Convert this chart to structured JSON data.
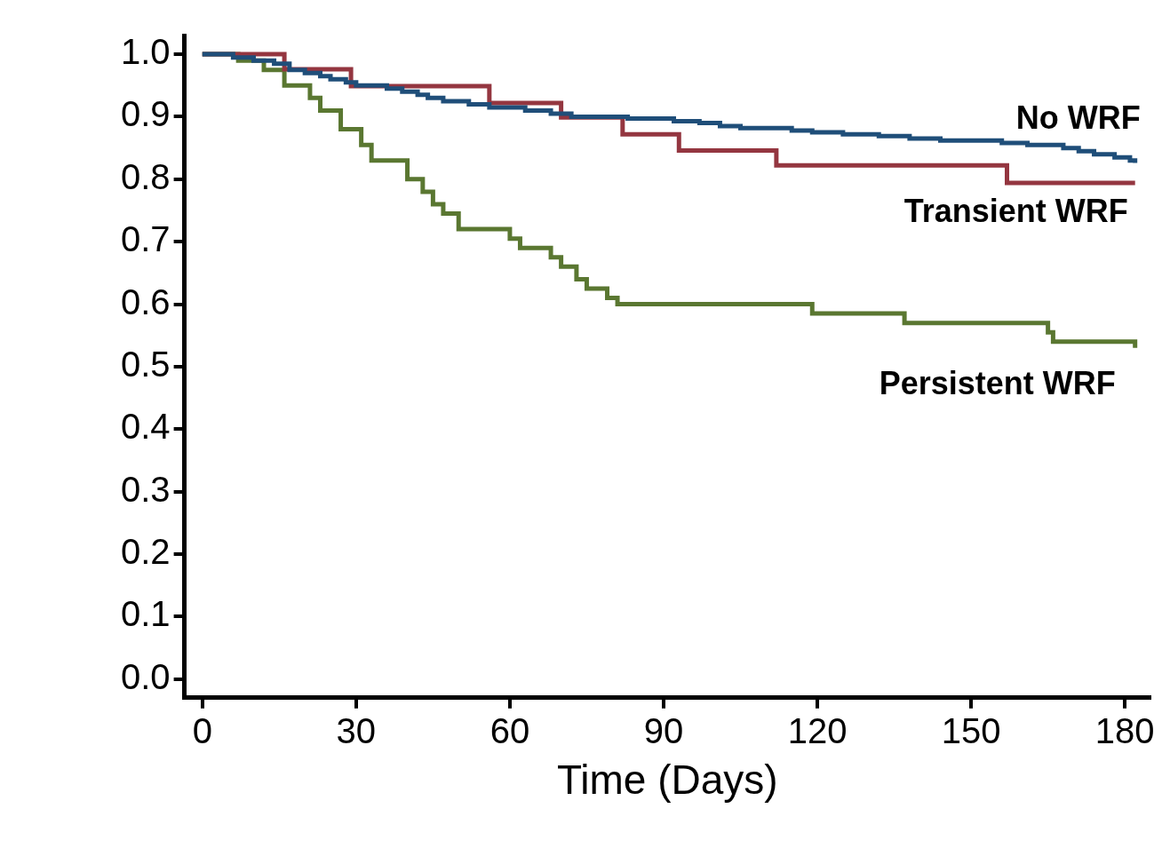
{
  "chart_data": {
    "type": "step",
    "xlabel": "Time (Days)",
    "xlim": [
      -3.5,
      185
    ],
    "xticks": [
      0,
      30,
      60,
      90,
      120,
      150,
      180
    ],
    "ylim": [
      -0.03,
      1.03
    ],
    "yticks": [
      {
        "value": 0,
        "label": "0.0"
      },
      {
        "value": 0.1,
        "label": "0.1"
      },
      {
        "value": 0.2,
        "label": "0.2"
      },
      {
        "value": 0.3,
        "label": "0.3"
      },
      {
        "value": 0.4,
        "label": "0.4"
      },
      {
        "value": 0.5,
        "label": "0.5"
      },
      {
        "value": 0.6,
        "label": "0.6"
      },
      {
        "value": 0.7,
        "label": "0.7"
      },
      {
        "value": 0.8,
        "label": "0.8"
      },
      {
        "value": 0.9,
        "label": "0.9"
      },
      {
        "value": 1,
        "label": "1.0"
      }
    ],
    "grid": false,
    "legend": false,
    "marker": "none",
    "line_style": "solid",
    "series": [
      {
        "name": "No WRF",
        "color": "#1f4e79",
        "x": [
          0,
          6,
          10,
          14,
          17,
          20,
          23,
          25,
          28,
          30,
          36,
          39,
          42,
          44,
          47,
          52,
          56,
          63,
          68,
          72,
          83,
          92,
          97,
          101,
          105,
          115,
          119,
          125,
          132,
          138,
          144,
          156,
          161,
          168,
          171,
          174,
          178,
          181,
          182
        ],
        "values": [
          1.0,
          0.995,
          0.99,
          0.985,
          0.975,
          0.97,
          0.965,
          0.96,
          0.955,
          0.95,
          0.945,
          0.94,
          0.935,
          0.93,
          0.925,
          0.92,
          0.915,
          0.91,
          0.905,
          0.9,
          0.897,
          0.893,
          0.89,
          0.885,
          0.882,
          0.878,
          0.875,
          0.872,
          0.869,
          0.865,
          0.862,
          0.858,
          0.855,
          0.85,
          0.845,
          0.84,
          0.835,
          0.83,
          0.826
        ]
      },
      {
        "name": "Transient WRF",
        "color": "#943640",
        "x": [
          0,
          16,
          29,
          56,
          70,
          82,
          93,
          112,
          157,
          182
        ],
        "values": [
          1.0,
          0.976,
          0.949,
          0.922,
          0.899,
          0.872,
          0.846,
          0.822,
          0.794,
          0.794
        ]
      },
      {
        "name": "Persistent WRF",
        "color": "#5a7731",
        "x": [
          0,
          7,
          12,
          16,
          21,
          23,
          27,
          31,
          33,
          40,
          43,
          45,
          47,
          50,
          60,
          62,
          68,
          70,
          73,
          75,
          79,
          81,
          119,
          137,
          165,
          166,
          182
        ],
        "values": [
          1.0,
          0.99,
          0.975,
          0.95,
          0.93,
          0.91,
          0.88,
          0.855,
          0.83,
          0.8,
          0.78,
          0.76,
          0.745,
          0.72,
          0.705,
          0.69,
          0.675,
          0.66,
          0.64,
          0.625,
          0.61,
          0.6,
          0.585,
          0.57,
          0.555,
          0.54,
          0.53
        ]
      }
    ]
  }
}
